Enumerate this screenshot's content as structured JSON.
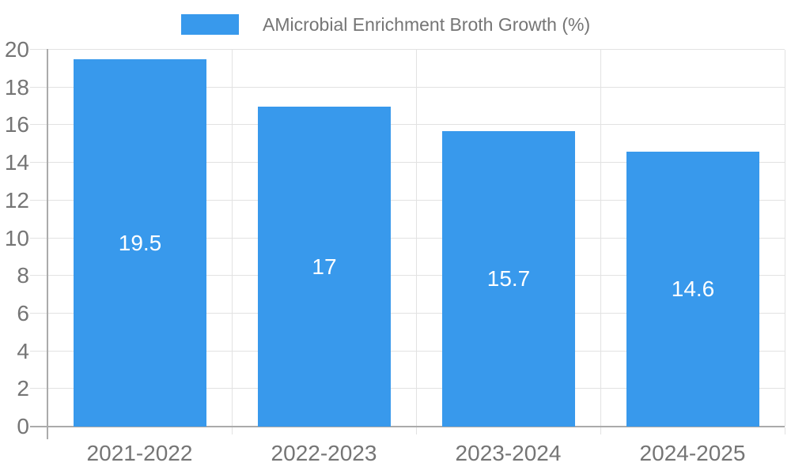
{
  "chart_data": {
    "type": "bar",
    "title": "",
    "legend": "AMicrobial Enrichment Broth Growth (%)",
    "legend_position": "top",
    "categories": [
      "2021-2022",
      "2022-2023",
      "2023-2024",
      "2024-2025"
    ],
    "values": [
      19.5,
      17,
      15.7,
      14.6
    ],
    "value_labels": [
      "19.5",
      "17",
      "15.7",
      "14.6"
    ],
    "xlabel": "",
    "ylabel": "",
    "ylim": [
      0,
      20
    ],
    "ytick_step": 2,
    "yticks": [
      0,
      2,
      4,
      6,
      8,
      10,
      12,
      14,
      16,
      18,
      20
    ],
    "grid": true,
    "colors": {
      "bar": "#3899EC",
      "value_label": "#FFFFFF",
      "grid_line": "#E2E2E2",
      "axis_line": "#ABABAB",
      "tick_label": "#757575",
      "legend_text": "#757575"
    }
  }
}
